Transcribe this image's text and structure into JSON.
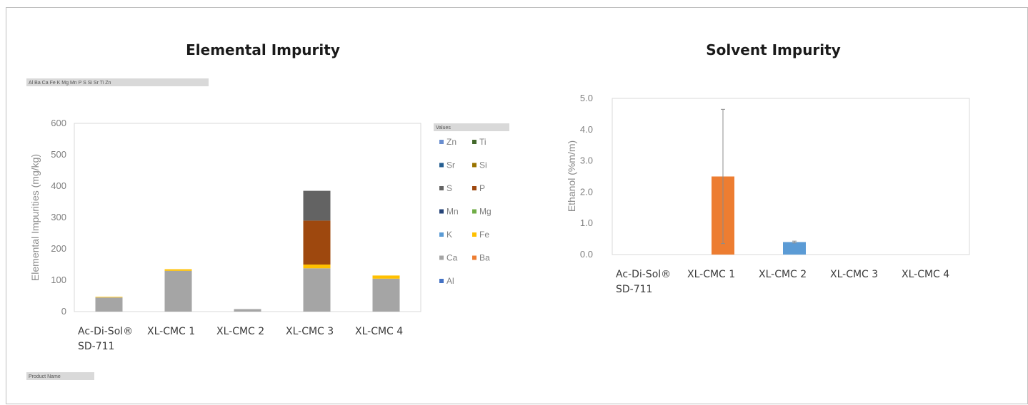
{
  "chart_data": [
    {
      "type": "bar",
      "stacked": true,
      "title": "Elemental Impurity",
      "ylabel": "Elemental Impurities (mg/kg)",
      "xlabel": "",
      "ylim": [
        0,
        600
      ],
      "yticks": [
        "0",
        "100",
        "200",
        "300",
        "400",
        "500",
        "600"
      ],
      "grid": false,
      "legend_position": "right",
      "legend_title": "Values",
      "filter_button_text": "Al Ba Ca Fe K Mg Mn P S Si Sr Ti Zn",
      "row_field_button_text": "Product Name",
      "categories": [
        "Ac-Di-Sol® SD-711",
        "XL-CMC 1",
        "XL-CMC 2",
        "XL-CMC 3",
        "XL-CMC 4"
      ],
      "legend_order": [
        "Zn",
        "Ti",
        "Sr",
        "Si",
        "S",
        "P",
        "Mn",
        "Mg",
        "K",
        "Fe",
        "Ca",
        "Ba",
        "Al"
      ],
      "series": [
        {
          "name": "Al",
          "color": "#4472c4",
          "values": [
            0,
            0,
            0,
            0,
            0
          ]
        },
        {
          "name": "Ba",
          "color": "#ed7d31",
          "values": [
            0,
            0,
            0,
            0,
            0
          ]
        },
        {
          "name": "Ca",
          "color": "#a5a5a5",
          "values": [
            45,
            130,
            8,
            138,
            105
          ]
        },
        {
          "name": "Fe",
          "color": "#ffc000",
          "values": [
            2,
            5,
            0,
            12,
            10
          ]
        },
        {
          "name": "K",
          "color": "#5b9bd5",
          "values": [
            0,
            0,
            0,
            0,
            0
          ]
        },
        {
          "name": "Mg",
          "color": "#70ad47",
          "values": [
            0,
            0,
            0,
            0,
            0
          ]
        },
        {
          "name": "Mn",
          "color": "#264478",
          "values": [
            0,
            0,
            0,
            0,
            0
          ]
        },
        {
          "name": "P",
          "color": "#9e480e",
          "values": [
            0,
            0,
            0,
            140,
            0
          ]
        },
        {
          "name": "S",
          "color": "#636363",
          "values": [
            0,
            0,
            0,
            95,
            0
          ]
        },
        {
          "name": "Si",
          "color": "#997300",
          "values": [
            0,
            0,
            0,
            0,
            0
          ]
        },
        {
          "name": "Sr",
          "color": "#255e91",
          "values": [
            0,
            0,
            0,
            0,
            0
          ]
        },
        {
          "name": "Ti",
          "color": "#43682b",
          "values": [
            0,
            0,
            0,
            0,
            0
          ]
        },
        {
          "name": "Zn",
          "color": "#698ed0",
          "values": [
            0,
            0,
            0,
            0,
            0
          ]
        }
      ]
    },
    {
      "type": "bar",
      "title": "Solvent Impurity",
      "ylabel": "Ethanol (%m/m)",
      "xlabel": "",
      "ylim": [
        0,
        5
      ],
      "yticks": [
        "0.0",
        "1.0",
        "2.0",
        "3.0",
        "4.0",
        "5.0"
      ],
      "grid": false,
      "categories": [
        "Ac-Di-Sol® SD-711",
        "XL-CMC 1",
        "XL-CMC 2",
        "XL-CMC 3",
        "XL-CMC 4"
      ],
      "values": [
        0,
        2.5,
        0.4,
        0,
        0
      ],
      "colors": [
        "#ed7d31",
        "#ed7d31",
        "#5b9bd5",
        "#5b9bd5",
        "#5b9bd5"
      ],
      "error_bars": [
        null,
        [
          0.35,
          4.65
        ],
        [
          0.37,
          0.43
        ],
        null,
        null
      ]
    }
  ]
}
